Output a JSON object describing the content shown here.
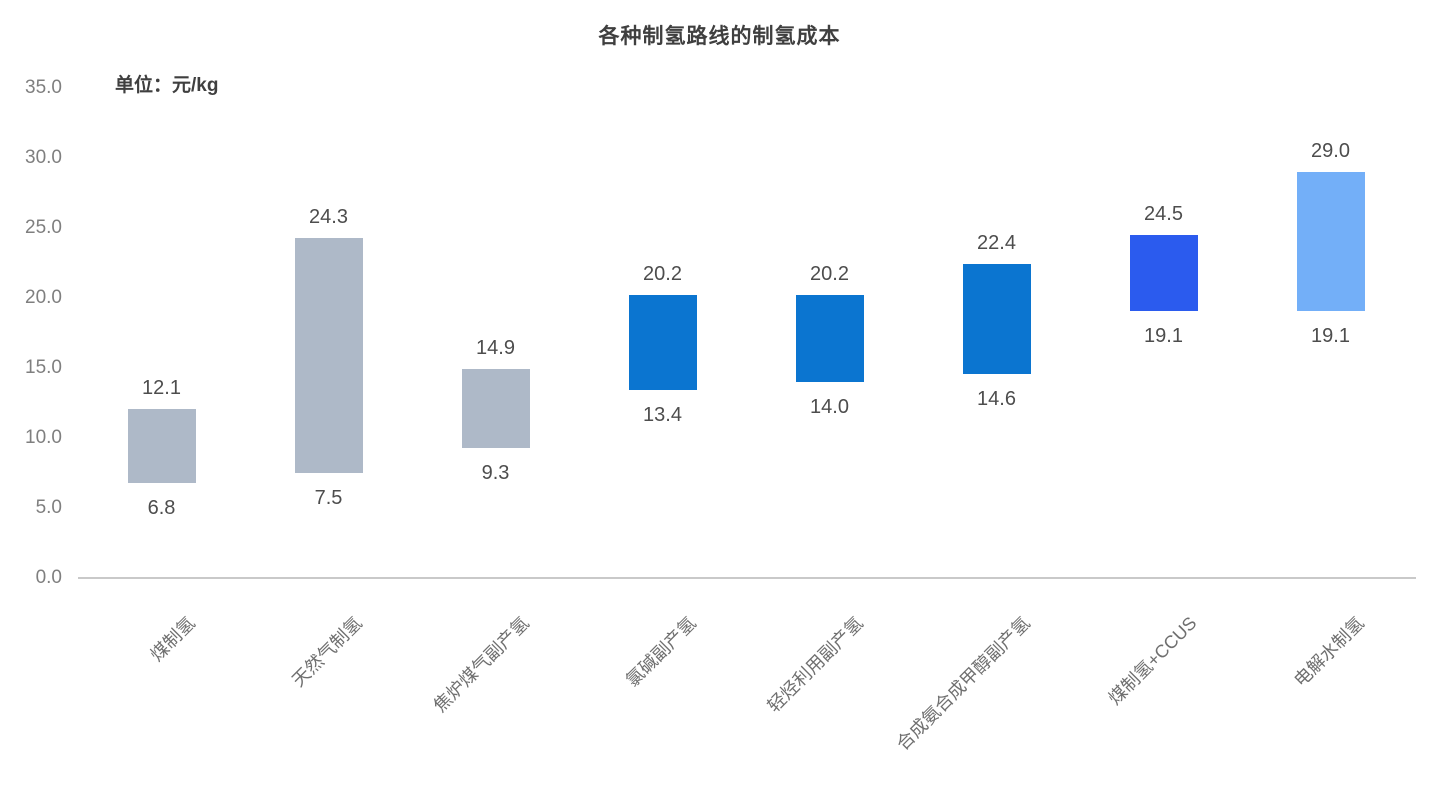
{
  "title": "各种制氢路线的制氢成本",
  "unit_label": "单位：元/kg",
  "colors": {
    "fossil_gray": "#aeb9c8",
    "byproduct_blue": "#0b75d0",
    "ccus_royal_blue": "#2b5bee",
    "electrolysis_light_blue": "#73aff8",
    "axis_line": "#c9c9c9",
    "tick_text": "#7f7f7f",
    "value_text": "#4d4d4d",
    "category_text": "#6f6f6f",
    "title_text": "#3f3f3f"
  },
  "chart_data": {
    "type": "bar",
    "subtype": "floating-range-column",
    "title": "各种制氢路线的制氢成本",
    "unit_label": "单位：元/kg",
    "xlabel": "",
    "ylabel": "元/kg",
    "ylim": [
      0,
      35
    ],
    "ytick_step": 5,
    "ytick_labels": [
      "35.0",
      "30.0",
      "25.0",
      "20.0",
      "15.0",
      "10.0",
      "5.0",
      "0.0"
    ],
    "grid": false,
    "legend": false,
    "categories": [
      "煤制氢",
      "天然气制氢",
      "焦炉煤气副产氢",
      "氯碱副产氢",
      "轻烃利用副产氢",
      "合成氨合成甲醇副产氢",
      "煤制氢+CCUS",
      "电解水制氢"
    ],
    "values": [
      {
        "category": "煤制氢",
        "min": 6.8,
        "max": 12.1,
        "min_label": "6.8",
        "max_label": "12.1",
        "color": "#aeb9c8"
      },
      {
        "category": "天然气制氢",
        "min": 7.5,
        "max": 24.3,
        "min_label": "7.5",
        "max_label": "24.3",
        "color": "#aeb9c8"
      },
      {
        "category": "焦炉煤气副产氢",
        "min": 9.3,
        "max": 14.9,
        "min_label": "9.3",
        "max_label": "14.9",
        "color": "#aeb9c8"
      },
      {
        "category": "氯碱副产氢",
        "min": 13.4,
        "max": 20.2,
        "min_label": "13.4",
        "max_label": "20.2",
        "color": "#0b75d0"
      },
      {
        "category": "轻烃利用副产氢",
        "min": 14.0,
        "max": 20.2,
        "min_label": "14.0",
        "max_label": "20.2",
        "color": "#0b75d0"
      },
      {
        "category": "合成氨合成甲醇副产氢",
        "min": 14.6,
        "max": 22.4,
        "min_label": "14.6",
        "max_label": "22.4",
        "color": "#0b75d0"
      },
      {
        "category": "煤制氢+CCUS",
        "min": 19.1,
        "max": 24.5,
        "min_label": "19.1",
        "max_label": "24.5",
        "color": "#2b5bee"
      },
      {
        "category": "电解水制氢",
        "min": 19.1,
        "max": 29.0,
        "min_label": "19.1",
        "max_label": "29.0",
        "color": "#73aff8"
      }
    ]
  }
}
